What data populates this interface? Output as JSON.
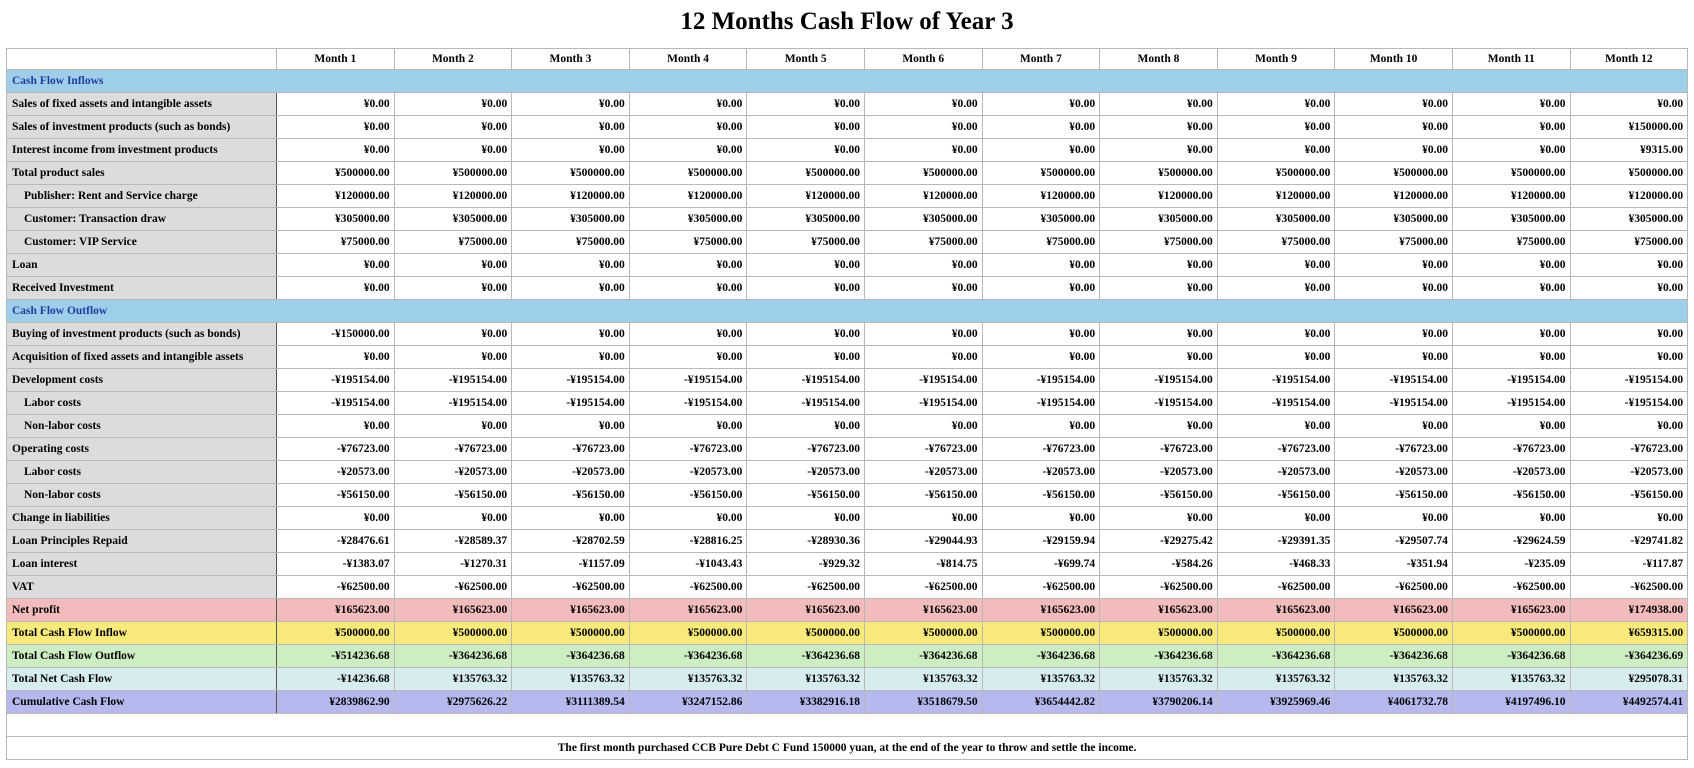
{
  "title": "12 Months Cash Flow of Year 3",
  "months": [
    "Month 1",
    "Month 2",
    "Month 3",
    "Month 4",
    "Month 5",
    "Month 6",
    "Month 7",
    "Month 8",
    "Month 9",
    "Month 10",
    "Month 11",
    "Month 12"
  ],
  "colors": {
    "section_bg": "#9ecfea",
    "section_text": "#1f3d9e",
    "label_bg": "#dcdcdc",
    "net_profit_bg": "#f3bcbc",
    "inflow_bg": "#f7ea7a",
    "outflow_bg": "#cdeec3",
    "net_flow_bg": "#d6ecef",
    "cumulative_bg": "#b6b9ee"
  },
  "rows": [
    {
      "type": "section",
      "label": "Cash Flow Inflows"
    },
    {
      "label": "Sales of fixed assets and intangible assets",
      "indent": false,
      "values": [
        "¥0.00",
        "¥0.00",
        "¥0.00",
        "¥0.00",
        "¥0.00",
        "¥0.00",
        "¥0.00",
        "¥0.00",
        "¥0.00",
        "¥0.00",
        "¥0.00",
        "¥0.00"
      ]
    },
    {
      "label": "Sales of investment products (such as bonds)",
      "indent": false,
      "values": [
        "¥0.00",
        "¥0.00",
        "¥0.00",
        "¥0.00",
        "¥0.00",
        "¥0.00",
        "¥0.00",
        "¥0.00",
        "¥0.00",
        "¥0.00",
        "¥0.00",
        "¥150000.00"
      ]
    },
    {
      "label": "Interest income from investment products",
      "indent": false,
      "values": [
        "¥0.00",
        "¥0.00",
        "¥0.00",
        "¥0.00",
        "¥0.00",
        "¥0.00",
        "¥0.00",
        "¥0.00",
        "¥0.00",
        "¥0.00",
        "¥0.00",
        "¥9315.00"
      ]
    },
    {
      "label": "Total product sales",
      "indent": false,
      "values": [
        "¥500000.00",
        "¥500000.00",
        "¥500000.00",
        "¥500000.00",
        "¥500000.00",
        "¥500000.00",
        "¥500000.00",
        "¥500000.00",
        "¥500000.00",
        "¥500000.00",
        "¥500000.00",
        "¥500000.00"
      ]
    },
    {
      "label": "Publisher: Rent and Service charge",
      "indent": true,
      "values": [
        "¥120000.00",
        "¥120000.00",
        "¥120000.00",
        "¥120000.00",
        "¥120000.00",
        "¥120000.00",
        "¥120000.00",
        "¥120000.00",
        "¥120000.00",
        "¥120000.00",
        "¥120000.00",
        "¥120000.00"
      ]
    },
    {
      "label": "Customer: Transaction draw",
      "indent": true,
      "values": [
        "¥305000.00",
        "¥305000.00",
        "¥305000.00",
        "¥305000.00",
        "¥305000.00",
        "¥305000.00",
        "¥305000.00",
        "¥305000.00",
        "¥305000.00",
        "¥305000.00",
        "¥305000.00",
        "¥305000.00"
      ]
    },
    {
      "label": "Customer: VIP Service",
      "indent": true,
      "values": [
        "¥75000.00",
        "¥75000.00",
        "¥75000.00",
        "¥75000.00",
        "¥75000.00",
        "¥75000.00",
        "¥75000.00",
        "¥75000.00",
        "¥75000.00",
        "¥75000.00",
        "¥75000.00",
        "¥75000.00"
      ]
    },
    {
      "label": "Loan",
      "indent": false,
      "values": [
        "¥0.00",
        "¥0.00",
        "¥0.00",
        "¥0.00",
        "¥0.00",
        "¥0.00",
        "¥0.00",
        "¥0.00",
        "¥0.00",
        "¥0.00",
        "¥0.00",
        "¥0.00"
      ]
    },
    {
      "label": "Received Investment",
      "indent": false,
      "values": [
        "¥0.00",
        "¥0.00",
        "¥0.00",
        "¥0.00",
        "¥0.00",
        "¥0.00",
        "¥0.00",
        "¥0.00",
        "¥0.00",
        "¥0.00",
        "¥0.00",
        "¥0.00"
      ]
    },
    {
      "type": "section",
      "label": "Cash Flow Outflow"
    },
    {
      "label": "Buying of investment products (such as bonds)",
      "indent": false,
      "values": [
        "-¥150000.00",
        "¥0.00",
        "¥0.00",
        "¥0.00",
        "¥0.00",
        "¥0.00",
        "¥0.00",
        "¥0.00",
        "¥0.00",
        "¥0.00",
        "¥0.00",
        "¥0.00"
      ]
    },
    {
      "label": "Acquisition of fixed assets and intangible assets",
      "indent": false,
      "values": [
        "¥0.00",
        "¥0.00",
        "¥0.00",
        "¥0.00",
        "¥0.00",
        "¥0.00",
        "¥0.00",
        "¥0.00",
        "¥0.00",
        "¥0.00",
        "¥0.00",
        "¥0.00"
      ]
    },
    {
      "label": "Development costs",
      "indent": false,
      "values": [
        "-¥195154.00",
        "-¥195154.00",
        "-¥195154.00",
        "-¥195154.00",
        "-¥195154.00",
        "-¥195154.00",
        "-¥195154.00",
        "-¥195154.00",
        "-¥195154.00",
        "-¥195154.00",
        "-¥195154.00",
        "-¥195154.00"
      ]
    },
    {
      "label": "Labor costs",
      "indent": true,
      "values": [
        "-¥195154.00",
        "-¥195154.00",
        "-¥195154.00",
        "-¥195154.00",
        "-¥195154.00",
        "-¥195154.00",
        "-¥195154.00",
        "-¥195154.00",
        "-¥195154.00",
        "-¥195154.00",
        "-¥195154.00",
        "-¥195154.00"
      ]
    },
    {
      "label": "Non-labor costs",
      "indent": true,
      "values": [
        "¥0.00",
        "¥0.00",
        "¥0.00",
        "¥0.00",
        "¥0.00",
        "¥0.00",
        "¥0.00",
        "¥0.00",
        "¥0.00",
        "¥0.00",
        "¥0.00",
        "¥0.00"
      ]
    },
    {
      "label": "Operating costs",
      "indent": false,
      "values": [
        "-¥76723.00",
        "-¥76723.00",
        "-¥76723.00",
        "-¥76723.00",
        "-¥76723.00",
        "-¥76723.00",
        "-¥76723.00",
        "-¥76723.00",
        "-¥76723.00",
        "-¥76723.00",
        "-¥76723.00",
        "-¥76723.00"
      ]
    },
    {
      "label": "Labor costs",
      "indent": true,
      "values": [
        "-¥20573.00",
        "-¥20573.00",
        "-¥20573.00",
        "-¥20573.00",
        "-¥20573.00",
        "-¥20573.00",
        "-¥20573.00",
        "-¥20573.00",
        "-¥20573.00",
        "-¥20573.00",
        "-¥20573.00",
        "-¥20573.00"
      ]
    },
    {
      "label": "Non-labor costs",
      "indent": true,
      "values": [
        "-¥56150.00",
        "-¥56150.00",
        "-¥56150.00",
        "-¥56150.00",
        "-¥56150.00",
        "-¥56150.00",
        "-¥56150.00",
        "-¥56150.00",
        "-¥56150.00",
        "-¥56150.00",
        "-¥56150.00",
        "-¥56150.00"
      ]
    },
    {
      "label": "Change in liabilities",
      "indent": false,
      "values": [
        "¥0.00",
        "¥0.00",
        "¥0.00",
        "¥0.00",
        "¥0.00",
        "¥0.00",
        "¥0.00",
        "¥0.00",
        "¥0.00",
        "¥0.00",
        "¥0.00",
        "¥0.00"
      ]
    },
    {
      "label": "Loan Principles Repaid",
      "indent": false,
      "values": [
        "-¥28476.61",
        "-¥28589.37",
        "-¥28702.59",
        "-¥28816.25",
        "-¥28930.36",
        "-¥29044.93",
        "-¥29159.94",
        "-¥29275.42",
        "-¥29391.35",
        "-¥29507.74",
        "-¥29624.59",
        "-¥29741.82"
      ]
    },
    {
      "label": "Loan interest",
      "indent": false,
      "values": [
        "-¥1383.07",
        "-¥1270.31",
        "-¥1157.09",
        "-¥1043.43",
        "-¥929.32",
        "-¥814.75",
        "-¥699.74",
        "-¥584.26",
        "-¥468.33",
        "-¥351.94",
        "-¥235.09",
        "-¥117.87"
      ]
    },
    {
      "label": "VAT",
      "indent": false,
      "values": [
        "-¥62500.00",
        "-¥62500.00",
        "-¥62500.00",
        "-¥62500.00",
        "-¥62500.00",
        "-¥62500.00",
        "-¥62500.00",
        "-¥62500.00",
        "-¥62500.00",
        "-¥62500.00",
        "-¥62500.00",
        "-¥62500.00"
      ]
    },
    {
      "type": "summary",
      "color": "net_profit_bg",
      "label": "Net profit",
      "values": [
        "¥165623.00",
        "¥165623.00",
        "¥165623.00",
        "¥165623.00",
        "¥165623.00",
        "¥165623.00",
        "¥165623.00",
        "¥165623.00",
        "¥165623.00",
        "¥165623.00",
        "¥165623.00",
        "¥174938.00"
      ]
    },
    {
      "type": "summary",
      "color": "inflow_bg",
      "label": "Total Cash Flow Inflow",
      "values": [
        "¥500000.00",
        "¥500000.00",
        "¥500000.00",
        "¥500000.00",
        "¥500000.00",
        "¥500000.00",
        "¥500000.00",
        "¥500000.00",
        "¥500000.00",
        "¥500000.00",
        "¥500000.00",
        "¥659315.00"
      ]
    },
    {
      "type": "summary",
      "color": "outflow_bg",
      "label": "Total Cash Flow Outflow",
      "values": [
        "-¥514236.68",
        "-¥364236.68",
        "-¥364236.68",
        "-¥364236.68",
        "-¥364236.68",
        "-¥364236.68",
        "-¥364236.68",
        "-¥364236.68",
        "-¥364236.68",
        "-¥364236.68",
        "-¥364236.68",
        "-¥364236.69"
      ]
    },
    {
      "type": "summary",
      "color": "net_flow_bg",
      "label": "Total Net Cash Flow",
      "values": [
        "-¥14236.68",
        "¥135763.32",
        "¥135763.32",
        "¥135763.32",
        "¥135763.32",
        "¥135763.32",
        "¥135763.32",
        "¥135763.32",
        "¥135763.32",
        "¥135763.32",
        "¥135763.32",
        "¥295078.31"
      ]
    },
    {
      "type": "summary",
      "color": "cumulative_bg",
      "label": "Cumulative Cash Flow",
      "values": [
        "¥2839862.90",
        "¥2975626.22",
        "¥3111389.54",
        "¥3247152.86",
        "¥3382916.18",
        "¥3518679.50",
        "¥3654442.82",
        "¥3790206.14",
        "¥3925969.46",
        "¥4061732.78",
        "¥4197496.10",
        "¥4492574.41"
      ]
    }
  ],
  "footnote": "The first month purchased CCB Pure Debt C Fund 150000 yuan, at the end of the year to throw and settle the income."
}
